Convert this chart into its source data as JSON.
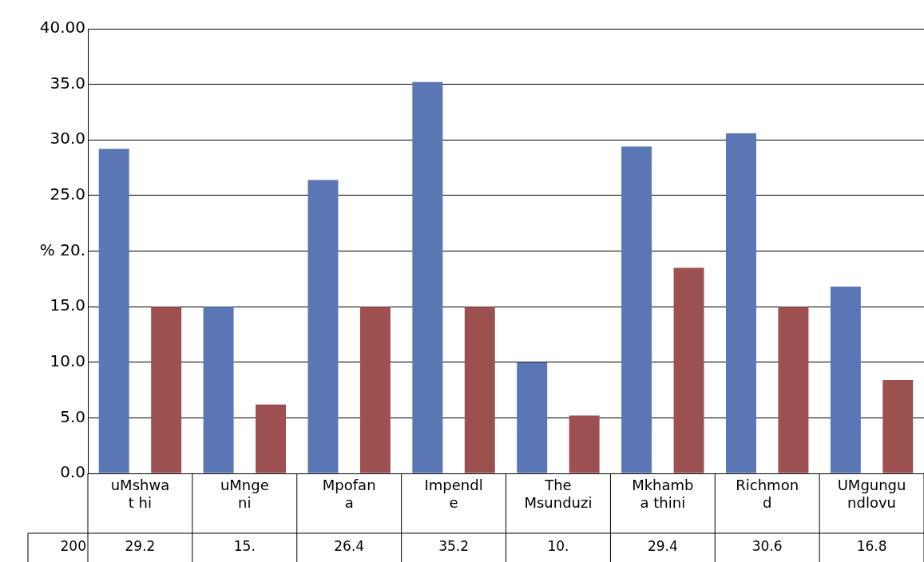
{
  "chart_data": {
    "type": "bar",
    "categories": [
      "uMshwa t hi",
      "uMnge ni",
      "Mpofan a",
      "Impendl e",
      "The Msunduzi",
      "Mkhamb a thini",
      "Richmon d",
      "UMgungu ndlovu"
    ],
    "series": [
      {
        "name": "200",
        "color": "#5b76b5",
        "values": [
          29.2,
          15,
          26.4,
          35.2,
          10,
          29.4,
          30.6,
          16.8
        ],
        "value_labels": [
          "29.2",
          "15.",
          "26.4",
          "35.2",
          "10.",
          "29.4",
          "30.6",
          "16.8"
        ]
      },
      {
        "color": "#9c5050",
        "values": [
          15,
          6.2,
          15,
          15,
          5.2,
          18.5,
          15,
          8.4
        ]
      }
    ],
    "ylim": [
      0,
      40
    ],
    "yticks": [
      {
        "value": 0,
        "label": "0.0"
      },
      {
        "value": 5,
        "label": "5.0"
      },
      {
        "value": 10,
        "label": "10.0"
      },
      {
        "value": 15,
        "label": "15.0"
      },
      {
        "value": 20,
        "label": "% 20."
      },
      {
        "value": 25,
        "label": "25.0"
      },
      {
        "value": 30,
        "label": "30.0"
      },
      {
        "value": 35,
        "label": "35.0"
      },
      {
        "value": 40,
        "label": "40.00"
      }
    ],
    "grid": "y",
    "legend": false
  }
}
